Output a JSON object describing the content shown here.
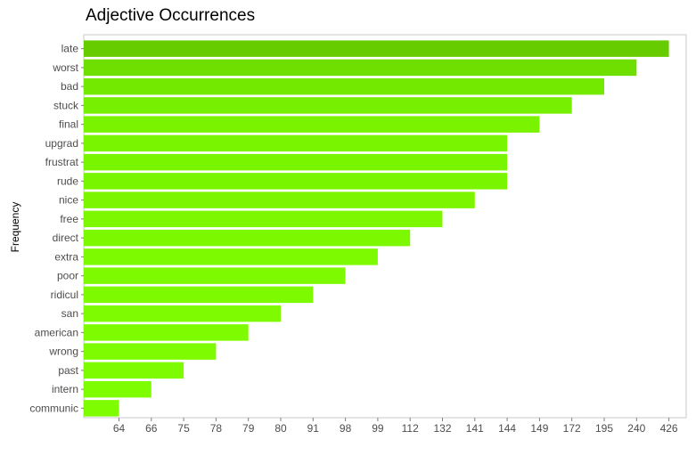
{
  "chart_data": {
    "type": "bar",
    "orientation": "horizontal",
    "title": "Adjective Occurrences",
    "xlabel": "",
    "ylabel": "Frequency",
    "categories": [
      "late",
      "worst",
      "bad",
      "stuck",
      "final",
      "upgrad",
      "frustrat",
      "rude",
      "nice",
      "free",
      "direct",
      "extra",
      "poor",
      "ridicul",
      "san",
      "american",
      "wrong",
      "past",
      "intern",
      "communic"
    ],
    "x_ticks": [
      "64",
      "66",
      "75",
      "78",
      "79",
      "80",
      "91",
      "98",
      "99",
      "112",
      "132",
      "141",
      "144",
      "149",
      "172",
      "195",
      "240",
      "426"
    ],
    "values": [
      "426",
      "240",
      "195",
      "172",
      "149",
      "144",
      "144",
      "144",
      "141",
      "132",
      "112",
      "99",
      "98",
      "91",
      "80",
      "79",
      "78",
      "75",
      "66",
      "64"
    ],
    "bar_colors": [
      "#66cc00",
      "#6fdf00",
      "#74e900",
      "#77ef00",
      "#79f300",
      "#7af500",
      "#7af500",
      "#7af500",
      "#7bf600",
      "#7cf700",
      "#7cf900",
      "#7df900",
      "#7df900",
      "#7dfa00",
      "#7efb00",
      "#7efb00",
      "#7efb00",
      "#7efb00",
      "#7efc00",
      "#7efc00"
    ],
    "grid": false,
    "legend": "none"
  }
}
